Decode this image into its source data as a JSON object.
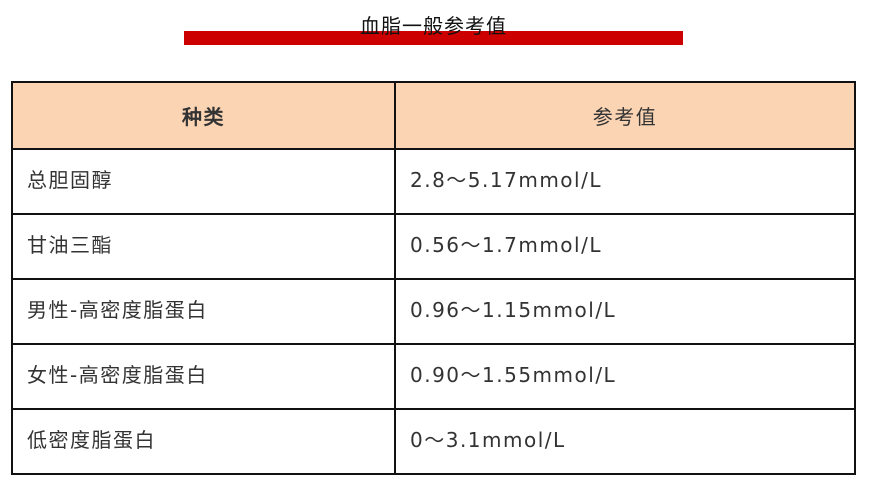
{
  "title": "血脂一般参考值",
  "colors": {
    "title_bar": "#cc0000",
    "header_bg": "#fbd4b4"
  },
  "table": {
    "headers": [
      "种类",
      "参考值"
    ],
    "rows": [
      [
        "总胆固醇",
        "2.8～5.17mmol/L"
      ],
      [
        "甘油三酯",
        "0.56～1.7mmol/L"
      ],
      [
        "男性-高密度脂蛋白",
        "0.96～1.15mmol/L"
      ],
      [
        "女性-高密度脂蛋白",
        "0.90～1.55mmol/L"
      ],
      [
        "低密度脂蛋白",
        "0～3.1mmol/L"
      ]
    ]
  }
}
